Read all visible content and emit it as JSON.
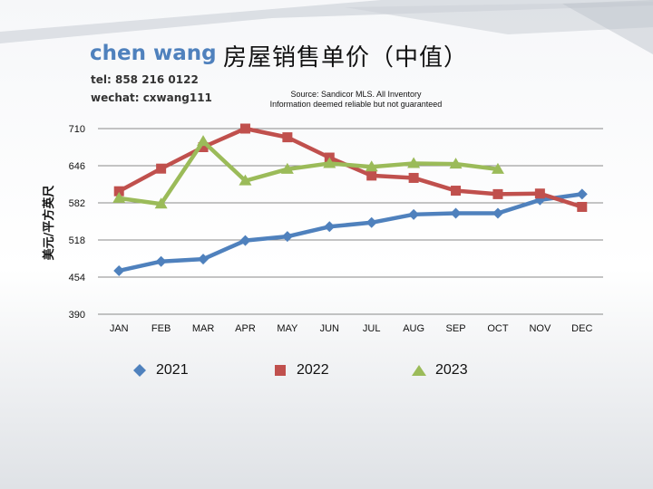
{
  "header": {
    "agent_name": "chen wang",
    "tel": "tel: 858 216 0122",
    "wechat": "wechat: cxwang111",
    "title": "房屋销售单价（中值）",
    "source_line1": "Source: Sandicor MLS. All Inventory",
    "source_line2": "Information deemed reliable but not guaranteed"
  },
  "colors": {
    "s2021": "#4f81bd",
    "s2022": "#c0504d",
    "s2023": "#9bbb59"
  },
  "chart_data": {
    "type": "line",
    "title": "房屋销售单价（中值）",
    "xlabel": "",
    "ylabel": "美元/平方英尺",
    "categories": [
      "JAN",
      "FEB",
      "MAR",
      "APR",
      "MAY",
      "JUN",
      "JUL",
      "AUG",
      "SEP",
      "OCT",
      "NOV",
      "DEC"
    ],
    "yticks": [
      390,
      454,
      518,
      582,
      646,
      710
    ],
    "ylim": [
      390,
      710
    ],
    "grid": true,
    "legend_position": "bottom",
    "series": [
      {
        "name": "2021",
        "marker": "diamond",
        "values": [
          465,
          481,
          485,
          517,
          524,
          541,
          548,
          562,
          564,
          564,
          587,
          597
        ]
      },
      {
        "name": "2022",
        "marker": "square",
        "values": [
          602,
          641,
          678,
          710,
          695,
          660,
          629,
          625,
          603,
          597,
          598,
          575
        ]
      },
      {
        "name": "2023",
        "marker": "triangle",
        "values": [
          590,
          580,
          688,
          620,
          640,
          650,
          644,
          650,
          649,
          640,
          null,
          null
        ]
      }
    ]
  }
}
